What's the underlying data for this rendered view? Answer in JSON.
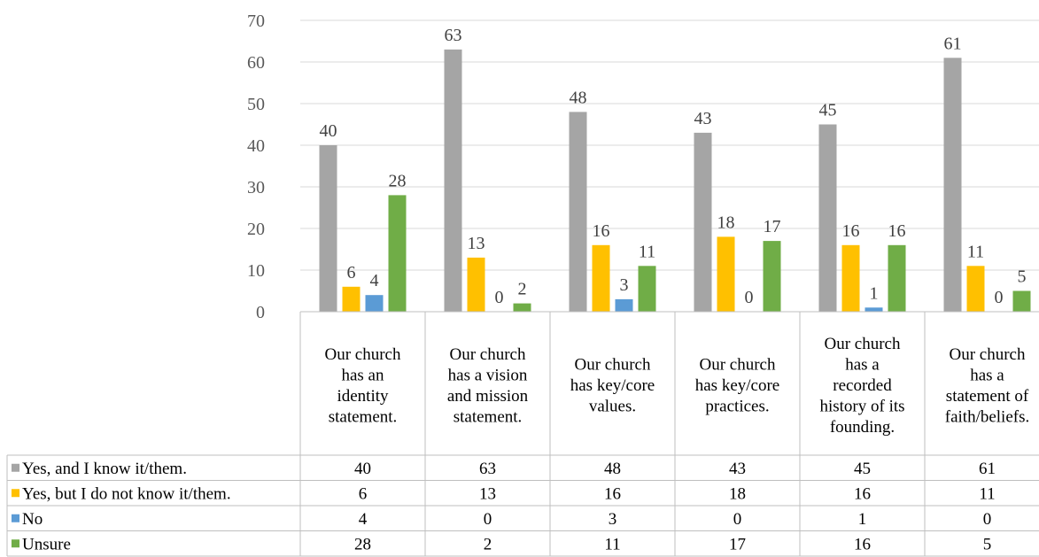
{
  "chart_data": {
    "type": "bar",
    "categories": [
      [
        "Our church",
        "has an",
        "identity",
        "statement."
      ],
      [
        "Our church",
        "has a vision",
        "and mission",
        "statement."
      ],
      [
        "Our church",
        "has key/core",
        "values."
      ],
      [
        "Our church",
        "has key/core",
        "practices."
      ],
      [
        "Our church",
        "has a",
        "recorded",
        "history of its",
        "founding."
      ],
      [
        "Our church",
        "has a",
        "statement of",
        "faith/beliefs."
      ]
    ],
    "series": [
      {
        "name": "Yes, and I know it/them.",
        "color": "#a5a5a5",
        "values": [
          40,
          63,
          48,
          43,
          45,
          61
        ]
      },
      {
        "name": "Yes, but I do not know it/them.",
        "color": "#ffc000",
        "values": [
          6,
          13,
          16,
          18,
          16,
          11
        ]
      },
      {
        "name": "No",
        "color": "#5b9bd5",
        "values": [
          4,
          0,
          3,
          0,
          1,
          0
        ]
      },
      {
        "name": "Unsure",
        "color": "#70ad47",
        "values": [
          28,
          2,
          11,
          17,
          16,
          5
        ]
      }
    ],
    "ylim": [
      0,
      70
    ],
    "yticks": [
      0,
      10,
      20,
      30,
      40,
      50,
      60,
      70
    ],
    "grid": true,
    "data_labels": true,
    "legend": "data table below chart"
  }
}
